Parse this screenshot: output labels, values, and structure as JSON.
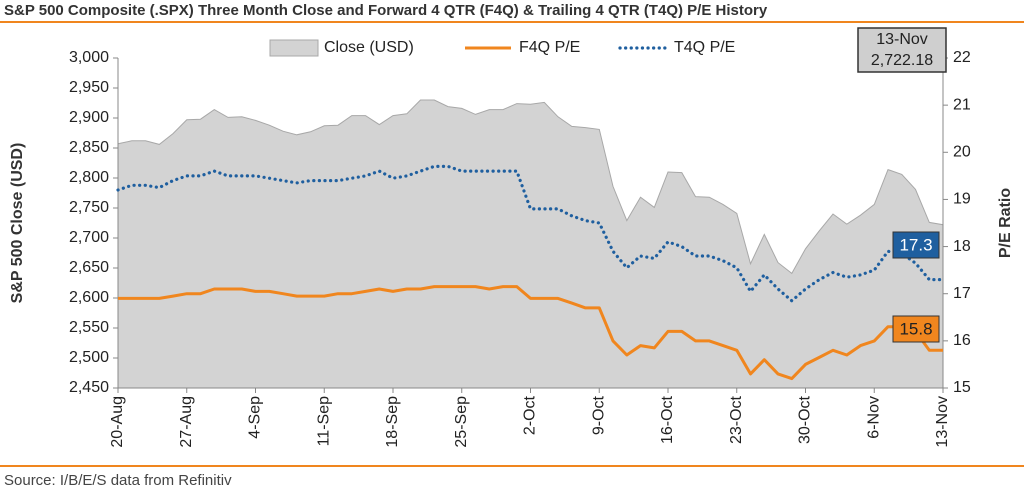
{
  "chart_data": {
    "type": "line",
    "title": "S&P 500 Composite (.SPX) Three Month Close and Forward 4 QTR (F4Q) & Trailing 4 QTR (T4Q) P/E History",
    "source": "Source: I/B/E/S data from Refinitiv",
    "ylabel": "S&P 500 Close (USD)",
    "y2label": "P/E Ratio",
    "categories": [
      "20-Aug",
      null,
      null,
      null,
      null,
      "27-Aug",
      null,
      null,
      null,
      null,
      "4-Sep",
      null,
      null,
      null,
      null,
      "11-Sep",
      null,
      null,
      null,
      null,
      "18-Sep",
      null,
      null,
      null,
      null,
      "25-Sep",
      null,
      null,
      null,
      null,
      "2-Oct",
      null,
      null,
      null,
      null,
      "9-Oct",
      null,
      null,
      null,
      null,
      "16-Oct",
      null,
      null,
      null,
      null,
      "23-Oct",
      null,
      null,
      null,
      null,
      "30-Oct",
      null,
      null,
      null,
      null,
      "6-Nov",
      null,
      null,
      null,
      null,
      "13-Nov"
    ],
    "series": [
      {
        "name": "Close (USD)",
        "style": "area",
        "color": "#d3d3d3",
        "axis": "y",
        "values": [
          2857,
          2862,
          2862,
          2856,
          2874,
          2897,
          2898,
          2914,
          2901,
          2902,
          2896,
          2888,
          2878,
          2872,
          2877,
          2887,
          2888,
          2904,
          2904,
          2889,
          2904,
          2907,
          2930,
          2930,
          2919,
          2916,
          2906,
          2914,
          2914,
          2924,
          2923,
          2926,
          2902,
          2886,
          2884,
          2881,
          2786,
          2729,
          2768,
          2751,
          2810,
          2809,
          2769,
          2768,
          2756,
          2741,
          2657,
          2706,
          2659,
          2641,
          2682,
          2712,
          2740,
          2723,
          2738,
          2756,
          2814,
          2806,
          2781,
          2726,
          2722.18
        ],
        "value_labels": [
          null,
          null,
          null,
          null,
          null,
          null,
          null,
          null,
          null,
          null,
          null,
          null,
          null,
          null,
          null,
          null,
          null,
          null,
          null,
          null,
          null,
          null,
          null,
          null,
          null,
          null,
          null,
          null,
          null,
          null,
          null,
          null,
          null,
          null,
          null,
          null,
          null,
          null,
          null,
          null,
          null,
          null,
          null,
          null,
          null,
          null,
          null,
          null,
          null,
          null,
          null,
          null,
          null,
          null,
          null,
          null,
          null,
          null,
          null,
          null,
          "2,722.18"
        ]
      },
      {
        "name": "F4Q P/E",
        "style": "solid",
        "color": "#f0861e",
        "axis": "y2",
        "values": [
          16.9,
          16.9,
          16.9,
          16.9,
          16.95,
          17.0,
          17.0,
          17.1,
          17.1,
          17.1,
          17.05,
          17.05,
          17.0,
          16.95,
          16.95,
          16.95,
          17.0,
          17.0,
          17.05,
          17.1,
          17.05,
          17.1,
          17.1,
          17.15,
          17.15,
          17.15,
          17.15,
          17.1,
          17.15,
          17.15,
          16.9,
          16.9,
          16.9,
          16.8,
          16.7,
          16.7,
          16.0,
          15.7,
          15.9,
          15.85,
          16.2,
          16.2,
          16.0,
          16.0,
          15.9,
          15.8,
          15.3,
          15.6,
          15.3,
          15.2,
          15.5,
          15.65,
          15.8,
          15.7,
          15.9,
          16.0,
          16.3,
          16.3,
          16.2,
          15.8,
          15.8
        ],
        "value_labels": [
          null,
          null,
          null,
          null,
          null,
          null,
          null,
          null,
          null,
          null,
          null,
          null,
          null,
          null,
          null,
          null,
          null,
          null,
          null,
          null,
          null,
          null,
          null,
          null,
          null,
          null,
          null,
          null,
          null,
          null,
          null,
          null,
          null,
          null,
          null,
          null,
          null,
          null,
          null,
          null,
          null,
          null,
          null,
          null,
          null,
          null,
          null,
          null,
          null,
          null,
          null,
          null,
          null,
          null,
          null,
          null,
          null,
          null,
          null,
          null,
          "15.8"
        ]
      },
      {
        "name": "T4Q P/E",
        "style": "dotted",
        "color": "#1f5f9f",
        "axis": "y2",
        "values": [
          19.2,
          19.3,
          19.3,
          19.25,
          19.4,
          19.5,
          19.5,
          19.6,
          19.5,
          19.5,
          19.5,
          19.45,
          19.4,
          19.35,
          19.4,
          19.4,
          19.4,
          19.45,
          19.5,
          19.6,
          19.45,
          19.5,
          19.6,
          19.7,
          19.7,
          19.6,
          19.6,
          19.6,
          19.6,
          19.6,
          18.8,
          18.8,
          18.8,
          18.65,
          18.55,
          18.5,
          17.9,
          17.55,
          17.8,
          17.75,
          18.1,
          18.0,
          17.8,
          17.8,
          17.7,
          17.55,
          17.05,
          17.4,
          17.1,
          16.85,
          17.1,
          17.3,
          17.45,
          17.35,
          17.4,
          17.5,
          17.9,
          17.85,
          17.65,
          17.3,
          17.3
        ],
        "value_labels": [
          null,
          null,
          null,
          null,
          null,
          null,
          null,
          null,
          null,
          null,
          null,
          null,
          null,
          null,
          null,
          null,
          null,
          null,
          null,
          null,
          null,
          null,
          null,
          null,
          null,
          null,
          null,
          null,
          null,
          null,
          null,
          null,
          null,
          null,
          null,
          null,
          null,
          null,
          null,
          null,
          null,
          null,
          null,
          null,
          null,
          null,
          null,
          null,
          null,
          null,
          null,
          null,
          null,
          null,
          null,
          null,
          null,
          null,
          null,
          null,
          "17.3"
        ]
      }
    ],
    "ylim": [
      2450,
      3000
    ],
    "yticks": [
      {
        "value": 2450,
        "label": "2,450"
      },
      {
        "value": 2500,
        "label": "2,500"
      },
      {
        "value": 2550,
        "label": "2,550"
      },
      {
        "value": 2600,
        "label": "2,600"
      },
      {
        "value": 2650,
        "label": "2,650"
      },
      {
        "value": 2700,
        "label": "2,700"
      },
      {
        "value": 2750,
        "label": "2,750"
      },
      {
        "value": 2800,
        "label": "2,800"
      },
      {
        "value": 2850,
        "label": "2,850"
      },
      {
        "value": 2900,
        "label": "2,900"
      },
      {
        "value": 2950,
        "label": "2,950"
      },
      {
        "value": 3000,
        "label": "3,000"
      }
    ],
    "y2lim": [
      15,
      22
    ],
    "y2ticks": [
      15,
      16,
      17,
      18,
      19,
      20,
      21,
      22
    ],
    "grid": false,
    "legend": "top"
  }
}
